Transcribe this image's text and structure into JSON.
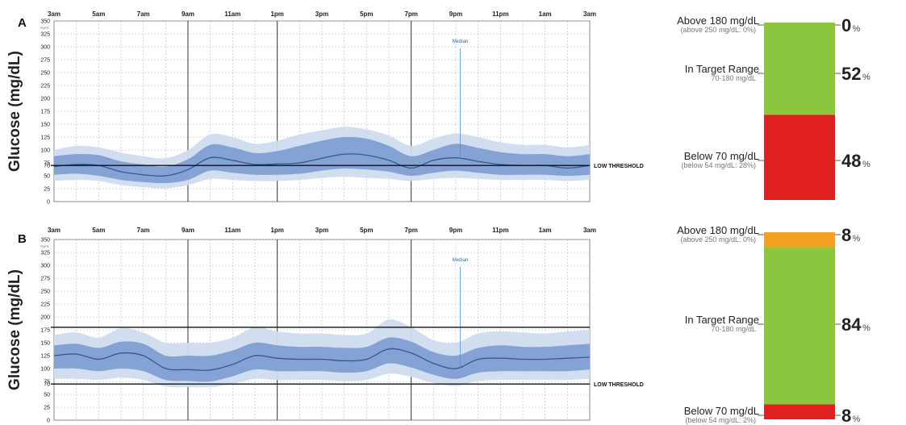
{
  "chart_data": [
    {
      "type": "area",
      "panel": "A",
      "ylabel": "Glucose (mg/dL)",
      "y_unit": "mg/dL",
      "x_ticks": [
        "3am",
        "5am",
        "7am",
        "9am",
        "11am",
        "1pm",
        "3pm",
        "5pm",
        "7pm",
        "9pm",
        "11pm",
        "1am",
        "3am"
      ],
      "y_ticks": [
        0,
        25,
        50,
        70,
        75,
        100,
        125,
        150,
        175,
        200,
        225,
        250,
        275,
        300,
        325,
        350
      ],
      "ylim": [
        0,
        350
      ],
      "hours": [
        0,
        1,
        2,
        3,
        4,
        5,
        6,
        7,
        8,
        9,
        10,
        11,
        12,
        13,
        14,
        15,
        16,
        17,
        18,
        19,
        20,
        21,
        22,
        23,
        24
      ],
      "median": [
        68,
        72,
        70,
        58,
        52,
        50,
        62,
        85,
        80,
        72,
        73,
        75,
        84,
        92,
        90,
        80,
        65,
        80,
        85,
        78,
        72,
        70,
        70,
        65,
        70
      ],
      "iqr_low": [
        52,
        54,
        50,
        42,
        38,
        36,
        42,
        60,
        56,
        52,
        52,
        54,
        60,
        64,
        62,
        58,
        50,
        56,
        60,
        56,
        52,
        52,
        52,
        50,
        52
      ],
      "iqr_high": [
        88,
        92,
        90,
        78,
        72,
        68,
        82,
        110,
        105,
        94,
        98,
        108,
        118,
        125,
        122,
        108,
        88,
        100,
        112,
        104,
        96,
        92,
        92,
        88,
        92
      ],
      "range_low": [
        40,
        42,
        40,
        32,
        28,
        26,
        32,
        44,
        42,
        40,
        40,
        42,
        46,
        48,
        46,
        44,
        40,
        44,
        46,
        44,
        42,
        42,
        42,
        40,
        42
      ],
      "range_high": [
        100,
        108,
        105,
        95,
        88,
        84,
        100,
        130,
        125,
        112,
        118,
        130,
        138,
        145,
        140,
        128,
        108,
        122,
        132,
        125,
        115,
        110,
        110,
        105,
        110
      ],
      "low_threshold": 70,
      "high_threshold": null,
      "threshold_label": "LOW THRESHOLD",
      "median_label": "Median",
      "median_marker_hour": 18.2,
      "tir": [
        {
          "key": "above",
          "label": "Above 180 mg/dL",
          "sub": "(above 250 mg/dL: 0%)",
          "value": 0,
          "color": "#f4a020"
        },
        {
          "key": "target",
          "label": "In Target Range",
          "sub": "70-180 mg/dL",
          "value": 52,
          "color": "#8cc63f"
        },
        {
          "key": "below",
          "label": "Below 70 mg/dL",
          "sub": "(below 54 mg/dL: 28%)",
          "value": 48,
          "color": "#e02020"
        }
      ]
    },
    {
      "type": "area",
      "panel": "B",
      "ylabel": "Glucose (mg/dL)",
      "y_unit": "mg/dL",
      "x_ticks": [
        "3am",
        "5am",
        "7am",
        "9am",
        "11am",
        "1pm",
        "3pm",
        "5pm",
        "7pm",
        "9pm",
        "11pm",
        "1am",
        "3am"
      ],
      "y_ticks": [
        0,
        25,
        50,
        70,
        75,
        100,
        125,
        150,
        175,
        200,
        225,
        250,
        275,
        300,
        325,
        350
      ],
      "ylim": [
        0,
        350
      ],
      "hours": [
        0,
        1,
        2,
        3,
        4,
        5,
        6,
        7,
        8,
        9,
        10,
        11,
        12,
        13,
        14,
        15,
        16,
        17,
        18,
        19,
        20,
        21,
        22,
        23,
        24
      ],
      "median": [
        125,
        128,
        118,
        130,
        125,
        100,
        98,
        97,
        108,
        125,
        120,
        118,
        118,
        115,
        118,
        138,
        130,
        110,
        100,
        118,
        120,
        118,
        118,
        120,
        122
      ],
      "iqr_low": [
        100,
        100,
        95,
        100,
        95,
        78,
        76,
        75,
        85,
        98,
        95,
        95,
        95,
        92,
        95,
        110,
        102,
        88,
        80,
        92,
        95,
        95,
        95,
        95,
        98
      ],
      "iqr_high": [
        145,
        148,
        140,
        152,
        148,
        125,
        125,
        125,
        135,
        150,
        145,
        142,
        142,
        140,
        142,
        160,
        152,
        132,
        125,
        140,
        145,
        142,
        142,
        145,
        148
      ],
      "range_low": [
        80,
        80,
        78,
        82,
        78,
        65,
        64,
        64,
        70,
        80,
        78,
        78,
        78,
        76,
        78,
        90,
        84,
        72,
        66,
        76,
        78,
        78,
        78,
        78,
        80
      ],
      "range_high": [
        165,
        170,
        160,
        178,
        170,
        150,
        150,
        150,
        160,
        180,
        172,
        168,
        168,
        165,
        168,
        195,
        180,
        155,
        150,
        168,
        172,
        170,
        168,
        172,
        175
      ],
      "low_threshold": 70,
      "high_threshold": 180,
      "threshold_label": "LOW THRESHOLD",
      "median_label": "Median",
      "median_marker_hour": 18.2,
      "tir": [
        {
          "key": "above",
          "label": "Above 180 mg/dL",
          "sub": "(above 250 mg/dL: 0%)",
          "value": 8,
          "color": "#f4a020"
        },
        {
          "key": "target",
          "label": "In Target Range",
          "sub": "70-180 mg/dL",
          "value": 84,
          "color": "#8cc63f"
        },
        {
          "key": "below",
          "label": "Below 70 mg/dL",
          "sub": "(below 54 mg/dL: 2%)",
          "value": 8,
          "color": "#e02020"
        }
      ]
    }
  ],
  "colors": {
    "range_band": "#cfdcee",
    "iqr_band": "#7f9fd2",
    "median_line": "#2d5a9a",
    "grid": "#bbbbbb",
    "threshold": "#111111"
  }
}
